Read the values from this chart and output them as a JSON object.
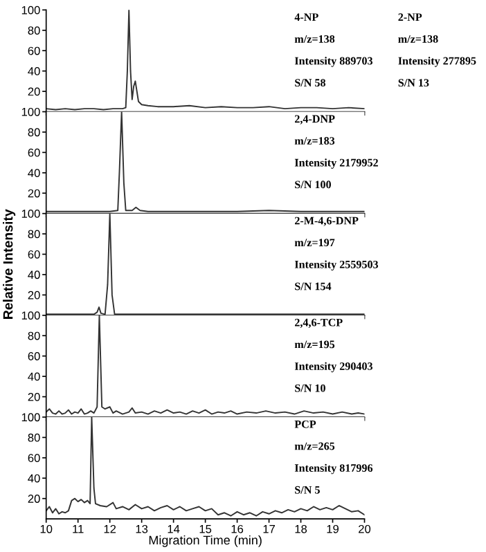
{
  "chart_data": [
    {
      "type": "line",
      "x": [
        10,
        10.3,
        10.6,
        10.9,
        11.2,
        11.5,
        11.8,
        12.1,
        12.4,
        12.5,
        12.55,
        12.6,
        12.65,
        12.7,
        12.75,
        12.8,
        12.85,
        12.9,
        13.0,
        13.2,
        13.5,
        14.0,
        14.5,
        15.0,
        15.5,
        16,
        16.5,
        17,
        17.5,
        18,
        18.5,
        19,
        19.5,
        20
      ],
      "series": [
        {
          "color": "#333333",
          "values": [
            3,
            2,
            3,
            2,
            3,
            3,
            2,
            3,
            3,
            4,
            40,
            100,
            40,
            12,
            25,
            30,
            20,
            10,
            7,
            6,
            5,
            5,
            6,
            4,
            5,
            4,
            4,
            5,
            3,
            4,
            4,
            3,
            4,
            3
          ]
        }
      ],
      "xlim": [
        10,
        20
      ],
      "xticks": [
        10,
        11,
        12,
        13,
        14,
        15,
        16,
        17,
        18,
        19,
        20
      ],
      "ylim": [
        0,
        100
      ],
      "yticks": [
        20,
        40,
        60,
        80,
        100
      ],
      "tick_labels": "y",
      "annotations": [
        "4-NP",
        "m/z=138",
        "Intensity 889703",
        "S/N 58",
        "2-NP",
        "m/z=138",
        "Intensity 277895",
        "S/N 13"
      ]
    },
    {
      "type": "line",
      "x": [
        10,
        10.5,
        11,
        11.5,
        12,
        12.25,
        12.3,
        12.37,
        12.44,
        12.5,
        12.7,
        12.82,
        12.95,
        13.2,
        14,
        15,
        16,
        17,
        18,
        19,
        20
      ],
      "series": [
        {
          "color": "#333333",
          "values": [
            2,
            2,
            2,
            2,
            2,
            3,
            40,
            100,
            30,
            3,
            3,
            6,
            3,
            2,
            2,
            2,
            2,
            3,
            2,
            2,
            2
          ]
        }
      ],
      "xlim": [
        10,
        20
      ],
      "xticks": [
        10,
        11,
        12,
        13,
        14,
        15,
        16,
        17,
        18,
        19,
        20
      ],
      "ylim": [
        0,
        100
      ],
      "yticks": [
        20,
        40,
        60,
        80,
        100
      ],
      "tick_labels": "y",
      "annotations": [
        "2,4-DNP",
        "m/z=183",
        "Intensity 2179952",
        "S/N 100"
      ]
    },
    {
      "type": "line",
      "x": [
        10,
        11,
        11.5,
        11.6,
        11.66,
        11.72,
        11.85,
        11.93,
        12.0,
        12.07,
        12.15,
        13,
        14,
        15,
        16,
        17,
        18,
        19,
        20
      ],
      "series": [
        {
          "color": "#333333",
          "values": [
            1,
            1,
            1,
            3,
            8,
            2,
            1,
            30,
            100,
            20,
            1,
            1,
            1,
            1,
            1,
            1,
            1,
            1,
            1
          ]
        }
      ],
      "xlim": [
        10,
        20
      ],
      "xticks": [
        10,
        11,
        12,
        13,
        14,
        15,
        16,
        17,
        18,
        19,
        20
      ],
      "ylim": [
        0,
        100
      ],
      "yticks": [
        20,
        40,
        60,
        80,
        100
      ],
      "tick_labels": "y",
      "ylabel": "Relative Intensity",
      "annotations": [
        "2-M-4,6-DNP",
        "m/z=197",
        "Intensity 2559503",
        "S/N 154"
      ]
    },
    {
      "type": "line",
      "x": [
        10,
        10.1,
        10.2,
        10.3,
        10.4,
        10.5,
        10.6,
        10.7,
        10.8,
        10.9,
        11.0,
        11.1,
        11.2,
        11.3,
        11.4,
        11.5,
        11.6,
        11.67,
        11.75,
        11.85,
        12.0,
        12.1,
        12.2,
        12.4,
        12.6,
        12.7,
        12.8,
        13.0,
        13.2,
        13.4,
        13.6,
        13.8,
        14.0,
        14.2,
        14.4,
        14.6,
        14.8,
        15.0,
        15.2,
        15.4,
        15.6,
        15.8,
        16.0,
        16.3,
        16.6,
        16.9,
        17.2,
        17.5,
        17.8,
        18.1,
        18.4,
        18.7,
        19.0,
        19.3,
        19.6,
        19.8,
        20.0
      ],
      "series": [
        {
          "color": "#333333",
          "values": [
            5,
            8,
            4,
            3,
            6,
            3,
            4,
            7,
            3,
            5,
            4,
            8,
            3,
            4,
            6,
            4,
            10,
            100,
            10,
            8,
            10,
            4,
            6,
            3,
            5,
            9,
            4,
            5,
            3,
            6,
            4,
            7,
            4,
            5,
            3,
            6,
            4,
            7,
            3,
            5,
            4,
            6,
            3,
            5,
            4,
            6,
            4,
            5,
            3,
            6,
            4,
            5,
            3,
            5,
            3,
            4,
            3
          ]
        }
      ],
      "xlim": [
        10,
        20
      ],
      "xticks": [
        10,
        11,
        12,
        13,
        14,
        15,
        16,
        17,
        18,
        19,
        20
      ],
      "ylim": [
        0,
        100
      ],
      "yticks": [
        20,
        40,
        60,
        80,
        100
      ],
      "tick_labels": "y",
      "annotations": [
        "2,4,6-TCP",
        "m/z=195",
        "Intensity 290403",
        "S/N 10"
      ]
    },
    {
      "type": "line",
      "x": [
        10,
        10.1,
        10.2,
        10.3,
        10.4,
        10.5,
        10.6,
        10.7,
        10.8,
        10.9,
        11.0,
        11.1,
        11.2,
        11.3,
        11.38,
        11.43,
        11.5,
        11.55,
        11.7,
        11.9,
        12.1,
        12.2,
        12.4,
        12.6,
        12.8,
        13.0,
        13.2,
        13.4,
        13.6,
        13.8,
        14.0,
        14.2,
        14.4,
        14.6,
        14.8,
        15.0,
        15.2,
        15.4,
        15.6,
        15.8,
        16.0,
        16.2,
        16.4,
        16.6,
        16.8,
        17.0,
        17.2,
        17.4,
        17.6,
        17.8,
        18.0,
        18.2,
        18.4,
        18.6,
        18.8,
        19.0,
        19.2,
        19.4,
        19.6,
        19.8,
        20.0
      ],
      "series": [
        {
          "color": "#333333",
          "values": [
            8,
            12,
            6,
            10,
            5,
            7,
            6,
            8,
            18,
            20,
            17,
            19,
            16,
            18,
            15,
            100,
            30,
            15,
            13,
            12,
            16,
            10,
            12,
            9,
            14,
            10,
            12,
            8,
            11,
            13,
            9,
            12,
            8,
            10,
            12,
            8,
            10,
            4,
            6,
            3,
            7,
            4,
            6,
            3,
            7,
            5,
            8,
            6,
            9,
            7,
            10,
            8,
            12,
            9,
            11,
            9,
            13,
            10,
            7,
            8,
            4
          ]
        }
      ],
      "xlim": [
        10,
        20
      ],
      "xticks": [
        10,
        11,
        12,
        13,
        14,
        15,
        16,
        17,
        18,
        19,
        20
      ],
      "ylim": [
        0,
        100
      ],
      "yticks": [
        20,
        40,
        60,
        80,
        100
      ],
      "xlabel": "Migration Time (min)",
      "annotations": [
        "PCP",
        "m/z=265",
        "Intensity 817996",
        "S/N 5"
      ]
    }
  ]
}
